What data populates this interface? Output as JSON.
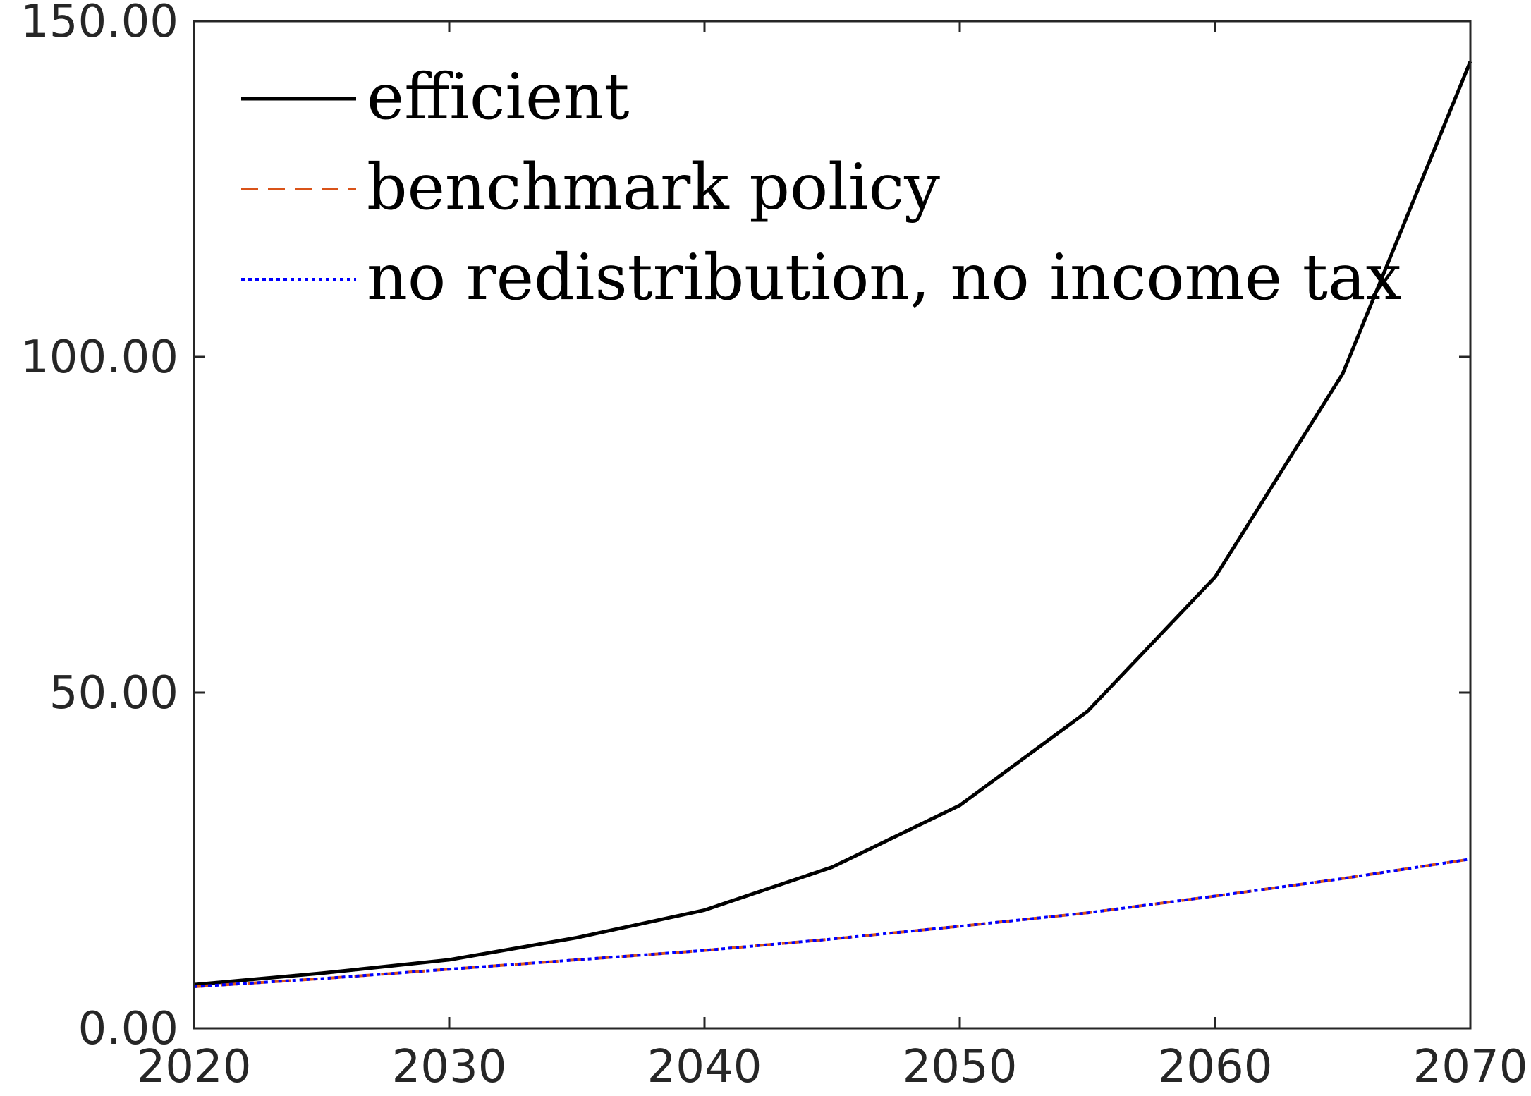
{
  "chart_data": {
    "type": "line",
    "title": "",
    "xlabel": "",
    "ylabel": "",
    "xlim": [
      2020,
      2070
    ],
    "ylim": [
      0,
      150
    ],
    "xticks": [
      2020,
      2030,
      2040,
      2050,
      2060,
      2070
    ],
    "yticks": [
      0,
      50,
      100,
      150
    ],
    "xtick_labels": [
      "2020",
      "2030",
      "2040",
      "2050",
      "2060",
      "2070"
    ],
    "ytick_labels": [
      "0.00",
      "50.00",
      "100.00",
      "150.00"
    ],
    "legend_position": "top-left",
    "grid": false,
    "x": [
      2020,
      2025,
      2030,
      2035,
      2040,
      2045,
      2050,
      2055,
      2060,
      2065,
      2070
    ],
    "series": [
      {
        "name": "efficient",
        "color": "#000000",
        "style": "solid",
        "values": [
          6.5,
          8.2,
          10.2,
          13.5,
          17.6,
          24.0,
          33.2,
          47.2,
          67.2,
          97.5,
          144.0
        ]
      },
      {
        "name": "benchmark policy",
        "color": "#d95319",
        "style": "dashed",
        "values": [
          6.2,
          7.4,
          8.8,
          10.2,
          11.6,
          13.3,
          15.2,
          17.2,
          19.7,
          22.3,
          25.2
        ]
      },
      {
        "name": "no redistribution, no income tax",
        "color": "#0000ff",
        "style": "dotted",
        "values": [
          6.2,
          7.4,
          8.8,
          10.2,
          11.6,
          13.3,
          15.2,
          17.2,
          19.7,
          22.3,
          25.2
        ]
      }
    ]
  }
}
